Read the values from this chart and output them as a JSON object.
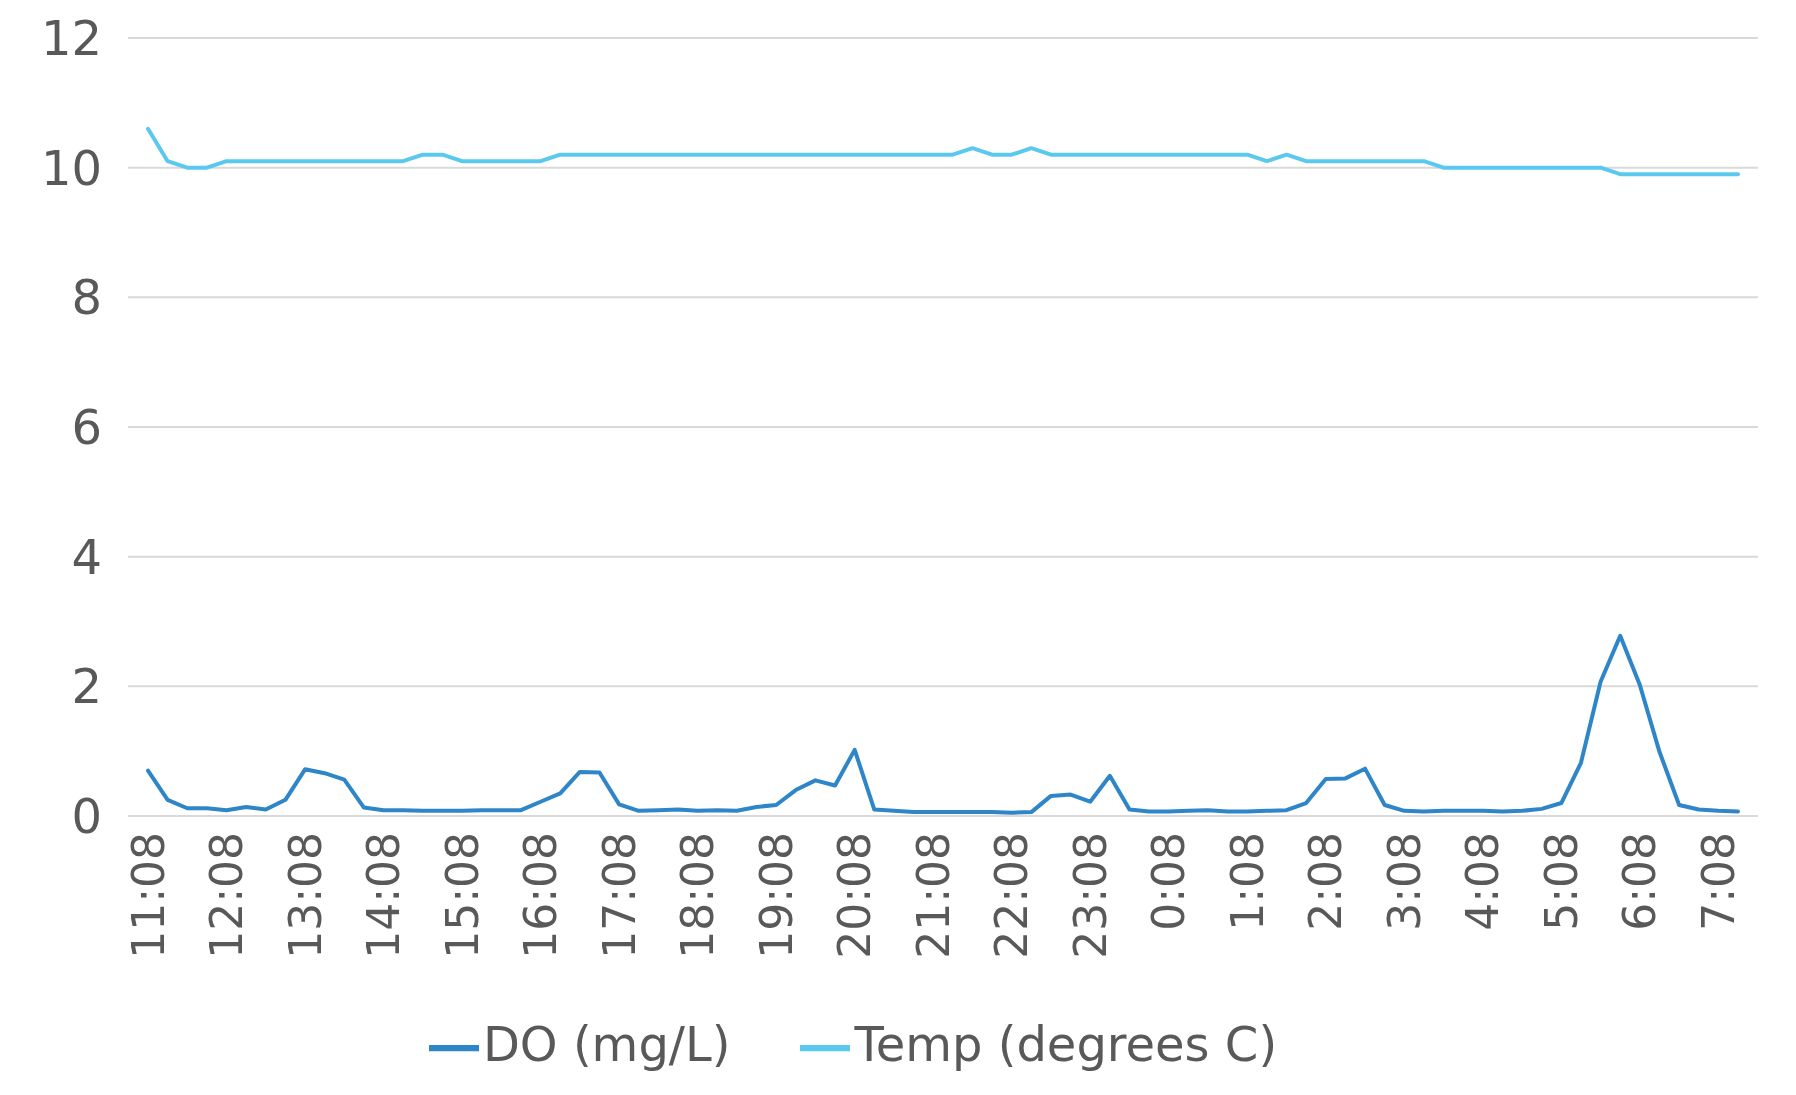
{
  "chart_data": {
    "type": "line",
    "categories": [
      "11:08",
      null,
      null,
      null,
      "12:08",
      null,
      null,
      null,
      "13:08",
      null,
      null,
      null,
      "14:08",
      null,
      null,
      null,
      "15:08",
      null,
      null,
      null,
      "16:08",
      null,
      null,
      null,
      "17:08",
      null,
      null,
      null,
      "18:08",
      null,
      null,
      null,
      "19:08",
      null,
      null,
      null,
      "20:08",
      null,
      null,
      null,
      "21:08",
      null,
      null,
      null,
      "22:08",
      null,
      null,
      null,
      "23:08",
      null,
      null,
      null,
      "0:08",
      null,
      null,
      null,
      "1:08",
      null,
      null,
      null,
      "2:08",
      null,
      null,
      null,
      "3:08",
      null,
      null,
      null,
      "4:08",
      null,
      null,
      null,
      "5:08",
      null,
      null,
      null,
      "6:08",
      null,
      null,
      null,
      "7:08",
      null
    ],
    "series": [
      {
        "name": "Temp (degrees C)",
        "color": "#5bc8ef",
        "values": [
          10.6,
          10.1,
          10.0,
          10.0,
          10.1,
          10.1,
          10.1,
          10.1,
          10.1,
          10.1,
          10.1,
          10.1,
          10.1,
          10.1,
          10.2,
          10.2,
          10.1,
          10.1,
          10.1,
          10.1,
          10.1,
          10.2,
          10.2,
          10.2,
          10.2,
          10.2,
          10.2,
          10.2,
          10.2,
          10.2,
          10.2,
          10.2,
          10.2,
          10.2,
          10.2,
          10.2,
          10.2,
          10.2,
          10.2,
          10.2,
          10.2,
          10.2,
          10.3,
          10.2,
          10.2,
          10.3,
          10.2,
          10.2,
          10.2,
          10.2,
          10.2,
          10.2,
          10.2,
          10.2,
          10.2,
          10.2,
          10.2,
          10.1,
          10.2,
          10.1,
          10.1,
          10.1,
          10.1,
          10.1,
          10.1,
          10.1,
          10.0,
          10.0,
          10.0,
          10.0,
          10.0,
          10.0,
          10.0,
          10.0,
          10.0,
          9.9,
          9.9,
          9.9,
          9.9,
          9.9,
          9.9,
          9.9
        ]
      },
      {
        "name": "DO (mg/L)",
        "color": "#2e86c8",
        "values": [
          0.7,
          0.25,
          0.12,
          0.12,
          0.09,
          0.14,
          0.1,
          0.25,
          0.72,
          0.66,
          0.56,
          0.13,
          0.09,
          0.09,
          0.08,
          0.08,
          0.08,
          0.09,
          0.09,
          0.09,
          0.22,
          0.35,
          0.68,
          0.67,
          0.18,
          0.08,
          0.09,
          0.1,
          0.08,
          0.09,
          0.08,
          0.14,
          0.17,
          0.4,
          0.55,
          0.47,
          1.02,
          0.1,
          0.08,
          0.06,
          0.06,
          0.06,
          0.06,
          0.06,
          0.05,
          0.06,
          0.31,
          0.33,
          0.22,
          0.62,
          0.1,
          0.07,
          0.07,
          0.08,
          0.09,
          0.07,
          0.07,
          0.08,
          0.09,
          0.2,
          0.57,
          0.58,
          0.73,
          0.17,
          0.08,
          0.07,
          0.08,
          0.08,
          0.08,
          0.07,
          0.08,
          0.11,
          0.2,
          0.82,
          2.07,
          2.78,
          2.02,
          0.99,
          0.17,
          0.1,
          0.08,
          0.07
        ]
      }
    ],
    "ylim": [
      0,
      12
    ],
    "yticks": [
      0,
      2,
      4,
      6,
      8,
      10,
      12
    ],
    "grid": "y",
    "legend": "bottom",
    "line_style": "solid"
  }
}
